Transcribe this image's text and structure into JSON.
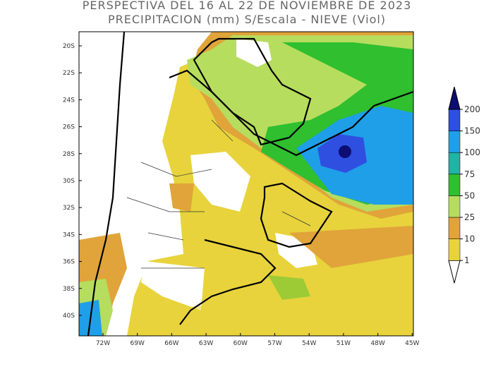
{
  "title": [
    "PERSPECTIVA DEL 16 AL 22 DE NOVIEMBRE DE 2023",
    "PRECIPITACION (mm) S/Escala - NIEVE (Viol)"
  ],
  "lat_labels": [
    "20S",
    "22S",
    "24S",
    "26S",
    "28S",
    "30S",
    "32S",
    "34S",
    "36S",
    "38S",
    "40S"
  ],
  "lon_labels": [
    "72W",
    "69W",
    "66W",
    "63W",
    "60W",
    "57W",
    "54W",
    "51W",
    "48W",
    "45W"
  ],
  "colorbar": {
    "levels": [
      1,
      10,
      25,
      50,
      75,
      100,
      150,
      200
    ],
    "colors": [
      "#ffffff",
      "#e8d33c",
      "#e0a43a",
      "#b6dd5e",
      "#2fbf2f",
      "#21b3a3",
      "#1f9fe8",
      "#2f4fe0",
      "#0d0d73"
    ]
  }
}
